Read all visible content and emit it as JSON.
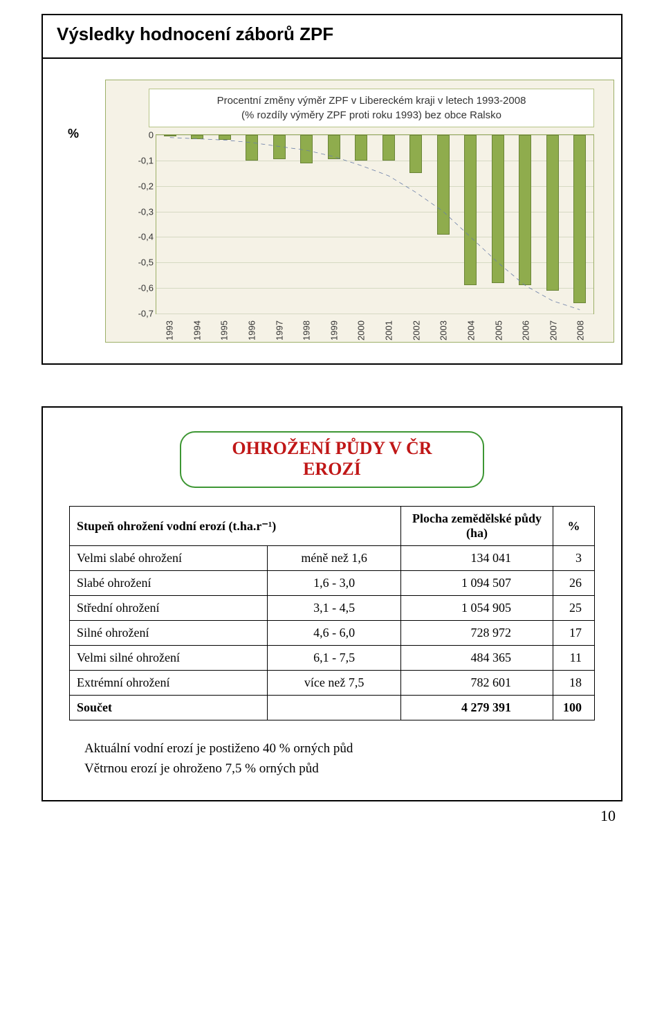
{
  "page_number": "10",
  "panel1": {
    "title": "Výsledky hodnocení záborů ZPF",
    "chart": {
      "type": "bar",
      "title_line1": "Procentní změny výměr ZPF v Libereckém kraji v letech 1993-2008",
      "title_line2": "(% rozdíly výměry ZPF proti roku 1993) bez obce Ralsko",
      "y_axis_label": "%",
      "y_ticks": [
        "0",
        "-0,1",
        "-0,2",
        "-0,3",
        "-0,4",
        "-0,5",
        "-0,6",
        "-0,7"
      ],
      "ylim_top": 0,
      "ylim_bottom": -0.7,
      "categories": [
        "1993",
        "1994",
        "1995",
        "1996",
        "1997",
        "1998",
        "1999",
        "2000",
        "2001",
        "2002",
        "2003",
        "2004",
        "2005",
        "2006",
        "2007",
        "2008"
      ],
      "values": [
        0,
        -0.015,
        -0.02,
        -0.1,
        -0.095,
        -0.11,
        -0.095,
        -0.1,
        -0.1,
        -0.15,
        -0.39,
        -0.59,
        -0.58,
        -0.59,
        -0.61,
        -0.66
      ],
      "trend_values": [
        -0.01,
        -0.015,
        -0.02,
        -0.03,
        -0.045,
        -0.06,
        -0.085,
        -0.12,
        -0.16,
        -0.225,
        -0.3,
        -0.4,
        -0.5,
        -0.59,
        -0.65,
        -0.685
      ],
      "bar_color": "#8fac4d",
      "bar_border_color": "#6a8437",
      "trend_color": "#6a7ea8",
      "trend_dash": "6 5",
      "background": "#f5f2e6",
      "border_color": "#9caf67",
      "grid_color": "#d5d9c2"
    }
  },
  "panel2": {
    "headline_l1": "OHROŽENÍ PŮDY V ČR",
    "headline_l2": "EROZÍ",
    "headline_color": "#c01717",
    "headline_border": "#3d9633",
    "table": {
      "col_stupen": "Stupeň ohrožení vodní erozí (t.ha.r⁻¹)",
      "col_plocha": "Plocha zemědělské půdy (ha)",
      "col_pct": "%",
      "rows": [
        {
          "name": "Velmi slabé ohrožení",
          "range": "méně než 1,6",
          "area": "134 041",
          "pct": "3"
        },
        {
          "name": "Slabé ohrožení",
          "range": "1,6 - 3,0",
          "area": "1 094 507",
          "pct": "26"
        },
        {
          "name": "Střední ohrožení",
          "range": "3,1 - 4,5",
          "area": "1 054 905",
          "pct": "25"
        },
        {
          "name": "Silné ohrožení",
          "range": "4,6 - 6,0",
          "area": "728 972",
          "pct": "17"
        },
        {
          "name": "Velmi silné ohrožení",
          "range": "6,1 - 7,5",
          "area": "484 365",
          "pct": "11"
        },
        {
          "name": "Extrémní ohrožení",
          "range": "více než 7,5",
          "area": "782 601",
          "pct": "18"
        }
      ],
      "sum_label": "Součet",
      "sum_area": "4 279 391",
      "sum_pct": "100"
    },
    "footnote1": "Aktuální vodní erozí je postiženo 40 % orných půd",
    "footnote2": "Větrnou erozí je ohroženo 7,5 % orných půd"
  }
}
